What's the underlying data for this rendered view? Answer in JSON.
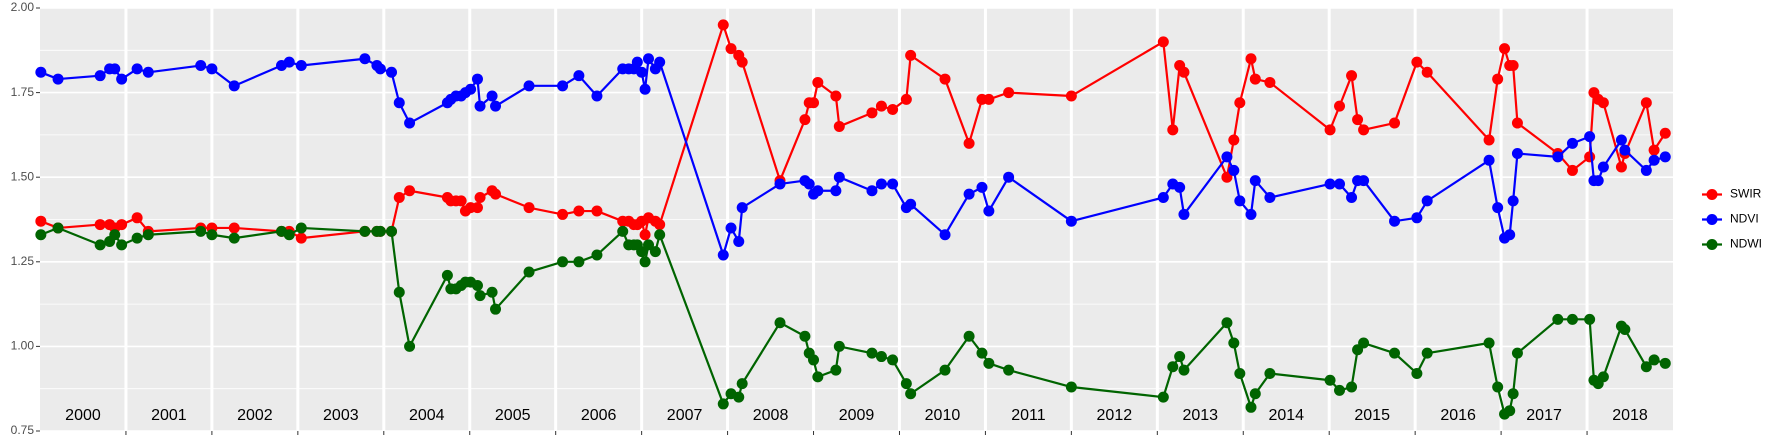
{
  "chart_data": {
    "type": "line",
    "x": [
      2000.01,
      2000.21,
      2000.7,
      2000.81,
      2000.87,
      2000.95,
      2001.13,
      2001.26,
      2001.87,
      2002.0,
      2002.26,
      2002.81,
      2002.9,
      2003.04,
      2003.78,
      2003.92,
      2003.96,
      2004.09,
      2004.18,
      2004.3,
      2004.74,
      2004.78,
      2004.84,
      2004.9,
      2004.95,
      2005.01,
      2005.09,
      2005.12,
      2005.26,
      2005.3,
      2005.69,
      2006.08,
      2006.27,
      2006.48,
      2006.78,
      2006.85,
      2006.91,
      2006.95,
      2007.0,
      2007.04,
      2007.08,
      2007.16,
      2007.21,
      2007.95,
      2008.04,
      2008.13,
      2008.17,
      2008.61,
      2008.9,
      2008.95,
      2009.0,
      2009.05,
      2009.26,
      2009.3,
      2009.68,
      2009.79,
      2009.92,
      2010.08,
      2010.13,
      2010.53,
      2010.81,
      2010.96,
      2011.04,
      2011.27,
      2012.0,
      2013.07,
      2013.18,
      2013.26,
      2013.31,
      2013.81,
      2013.89,
      2013.96,
      2014.09,
      2014.14,
      2014.31,
      2015.01,
      2015.12,
      2015.26,
      2015.33,
      2015.4,
      2015.76,
      2016.02,
      2016.14,
      2016.86,
      2016.96,
      2017.04,
      2017.1,
      2017.14,
      2017.19,
      2017.66,
      2017.83,
      2018.03,
      2018.08,
      2018.13,
      2018.19,
      2018.4,
      2018.44,
      2018.69,
      2018.78,
      2018.91
    ],
    "series": [
      {
        "name": "SWIR",
        "color": "#ff0000",
        "values": [
          1.37,
          1.35,
          1.36,
          1.36,
          1.35,
          1.36,
          1.38,
          1.34,
          1.35,
          1.35,
          1.35,
          1.34,
          1.34,
          1.32,
          1.34,
          1.34,
          1.34,
          1.34,
          1.44,
          1.46,
          1.44,
          1.43,
          1.43,
          1.43,
          1.4,
          1.41,
          1.41,
          1.44,
          1.46,
          1.45,
          1.41,
          1.39,
          1.4,
          1.4,
          1.37,
          1.37,
          1.36,
          1.36,
          1.37,
          1.33,
          1.38,
          1.37,
          1.36,
          1.95,
          1.88,
          1.86,
          1.84,
          1.49,
          1.67,
          1.72,
          1.72,
          1.78,
          1.74,
          1.65,
          1.69,
          1.71,
          1.7,
          1.73,
          1.86,
          1.79,
          1.6,
          1.73,
          1.73,
          1.75,
          1.74,
          1.9,
          1.64,
          1.83,
          1.81,
          1.5,
          1.61,
          1.72,
          1.85,
          1.79,
          1.78,
          1.64,
          1.71,
          1.8,
          1.67,
          1.64,
          1.66,
          1.84,
          1.81,
          1.61,
          1.79,
          1.88,
          1.83,
          1.83,
          1.66,
          1.57,
          1.52,
          1.56,
          1.75,
          1.73,
          1.72,
          1.53,
          1.57,
          1.72,
          1.58,
          1.63
        ]
      },
      {
        "name": "NDVI",
        "color": "#0000ff",
        "values": [
          1.81,
          1.79,
          1.8,
          1.82,
          1.82,
          1.79,
          1.82,
          1.81,
          1.83,
          1.82,
          1.77,
          1.83,
          1.84,
          1.83,
          1.85,
          1.83,
          1.82,
          1.81,
          1.72,
          1.66,
          1.72,
          1.73,
          1.74,
          1.74,
          1.75,
          1.76,
          1.79,
          1.71,
          1.74,
          1.71,
          1.77,
          1.77,
          1.8,
          1.74,
          1.82,
          1.82,
          1.82,
          1.84,
          1.81,
          1.76,
          1.85,
          1.82,
          1.84,
          1.27,
          1.35,
          1.31,
          1.41,
          1.48,
          1.49,
          1.48,
          1.45,
          1.46,
          1.46,
          1.5,
          1.46,
          1.48,
          1.48,
          1.41,
          1.42,
          1.33,
          1.45,
          1.47,
          1.4,
          1.5,
          1.37,
          1.44,
          1.48,
          1.47,
          1.39,
          1.56,
          1.52,
          1.43,
          1.39,
          1.49,
          1.44,
          1.48,
          1.48,
          1.44,
          1.49,
          1.49,
          1.37,
          1.38,
          1.43,
          1.55,
          1.41,
          1.32,
          1.33,
          1.43,
          1.57,
          1.56,
          1.6,
          1.62,
          1.49,
          1.49,
          1.53,
          1.61,
          1.58,
          1.52,
          1.55,
          1.56
        ]
      },
      {
        "name": "NDWI",
        "color": "#006400",
        "values": [
          1.33,
          1.35,
          1.3,
          1.31,
          1.33,
          1.3,
          1.32,
          1.33,
          1.34,
          1.33,
          1.32,
          1.34,
          1.33,
          1.35,
          1.34,
          1.34,
          1.34,
          1.34,
          1.16,
          1.0,
          1.21,
          1.17,
          1.17,
          1.18,
          1.19,
          1.19,
          1.18,
          1.15,
          1.16,
          1.11,
          1.22,
          1.25,
          1.25,
          1.27,
          1.34,
          1.3,
          1.3,
          1.3,
          1.28,
          1.25,
          1.3,
          1.28,
          1.33,
          0.83,
          0.86,
          0.85,
          0.89,
          1.07,
          1.03,
          0.98,
          0.96,
          0.91,
          0.93,
          1.0,
          0.98,
          0.97,
          0.96,
          0.89,
          0.86,
          0.93,
          1.03,
          0.98,
          0.95,
          0.93,
          0.88,
          0.85,
          0.94,
          0.97,
          0.93,
          1.07,
          1.01,
          0.92,
          0.82,
          0.86,
          0.92,
          0.9,
          0.87,
          0.88,
          0.99,
          1.01,
          0.98,
          0.92,
          0.98,
          1.01,
          0.88,
          0.8,
          0.81,
          0.86,
          0.98,
          1.08,
          1.08,
          1.08,
          0.9,
          0.89,
          0.91,
          1.06,
          1.05,
          0.94,
          0.96,
          0.95
        ]
      }
    ],
    "xlim": [
      2000,
      2019
    ],
    "xticks": [
      2001,
      2002,
      2003,
      2004,
      2005,
      2006,
      2007,
      2008,
      2009,
      2010,
      2011,
      2012,
      2013,
      2014,
      2015,
      2016,
      2017,
      2018
    ],
    "year_labels": [
      "2000",
      "2001",
      "2002",
      "2003",
      "2004",
      "2005",
      "2006",
      "2007",
      "2008",
      "2009",
      "2010",
      "2011",
      "2012",
      "2013",
      "2014",
      "2015",
      "2016",
      "2017",
      "2018"
    ],
    "ylim": [
      0.75,
      2.0
    ],
    "yticks": [
      {
        "value": 0.75,
        "label": "0.75"
      },
      {
        "value": 1.0,
        "label": "1.00"
      },
      {
        "value": 1.25,
        "label": "1.25"
      },
      {
        "value": 1.5,
        "label": "1.50"
      },
      {
        "value": 1.75,
        "label": "1.75"
      },
      {
        "value": 2.0,
        "label": "2.00"
      }
    ],
    "grid": true,
    "legend": "right"
  }
}
